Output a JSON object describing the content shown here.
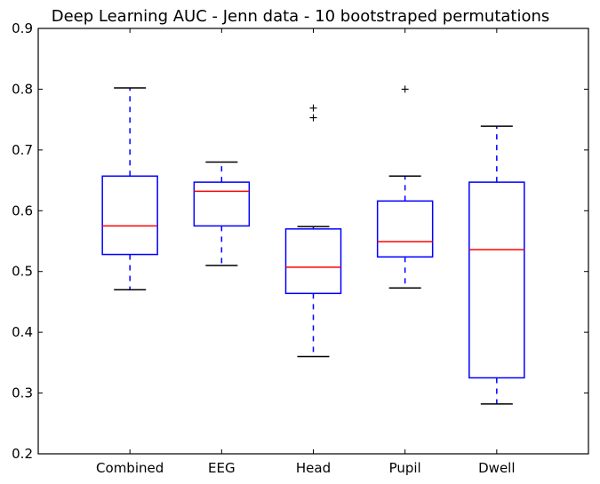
{
  "chart_data": {
    "type": "box",
    "title": "Deep Learning AUC - Jenn data - 10 bootstraped permutations",
    "xlabel": "",
    "ylabel": "",
    "ylim": [
      0.2,
      0.9
    ],
    "yticks": [
      0.2,
      0.3,
      0.4,
      0.5,
      0.6,
      0.7,
      0.8,
      0.9
    ],
    "ytick_labels": [
      "0.2",
      "0.3",
      "0.4",
      "0.5",
      "0.6",
      "0.7",
      "0.8",
      "0.9"
    ],
    "grid": false,
    "categories": [
      "Combined",
      "EEG",
      "Head",
      "Pupil",
      "Dwell"
    ],
    "boxes": [
      {
        "label": "Combined",
        "whisker_low": 0.47,
        "q1": 0.528,
        "median": 0.575,
        "q3": 0.657,
        "whisker_high": 0.802,
        "outliers": []
      },
      {
        "label": "EEG",
        "whisker_low": 0.51,
        "q1": 0.575,
        "median": 0.632,
        "q3": 0.647,
        "whisker_high": 0.68,
        "outliers": []
      },
      {
        "label": "Head",
        "whisker_low": 0.36,
        "q1": 0.464,
        "median": 0.507,
        "q3": 0.57,
        "whisker_high": 0.574,
        "outliers": [
          0.753,
          0.769
        ]
      },
      {
        "label": "Pupil",
        "whisker_low": 0.473,
        "q1": 0.524,
        "median": 0.549,
        "q3": 0.616,
        "whisker_high": 0.657,
        "outliers": [
          0.8
        ]
      },
      {
        "label": "Dwell",
        "whisker_low": 0.282,
        "q1": 0.325,
        "median": 0.536,
        "q3": 0.647,
        "whisker_high": 0.739,
        "outliers": []
      }
    ],
    "colors": {
      "box": "#0000ff",
      "median": "#ff0000",
      "whisker": "#0000ff",
      "cap": "#000000",
      "outlier": "#000000",
      "axes": "#000000"
    }
  }
}
